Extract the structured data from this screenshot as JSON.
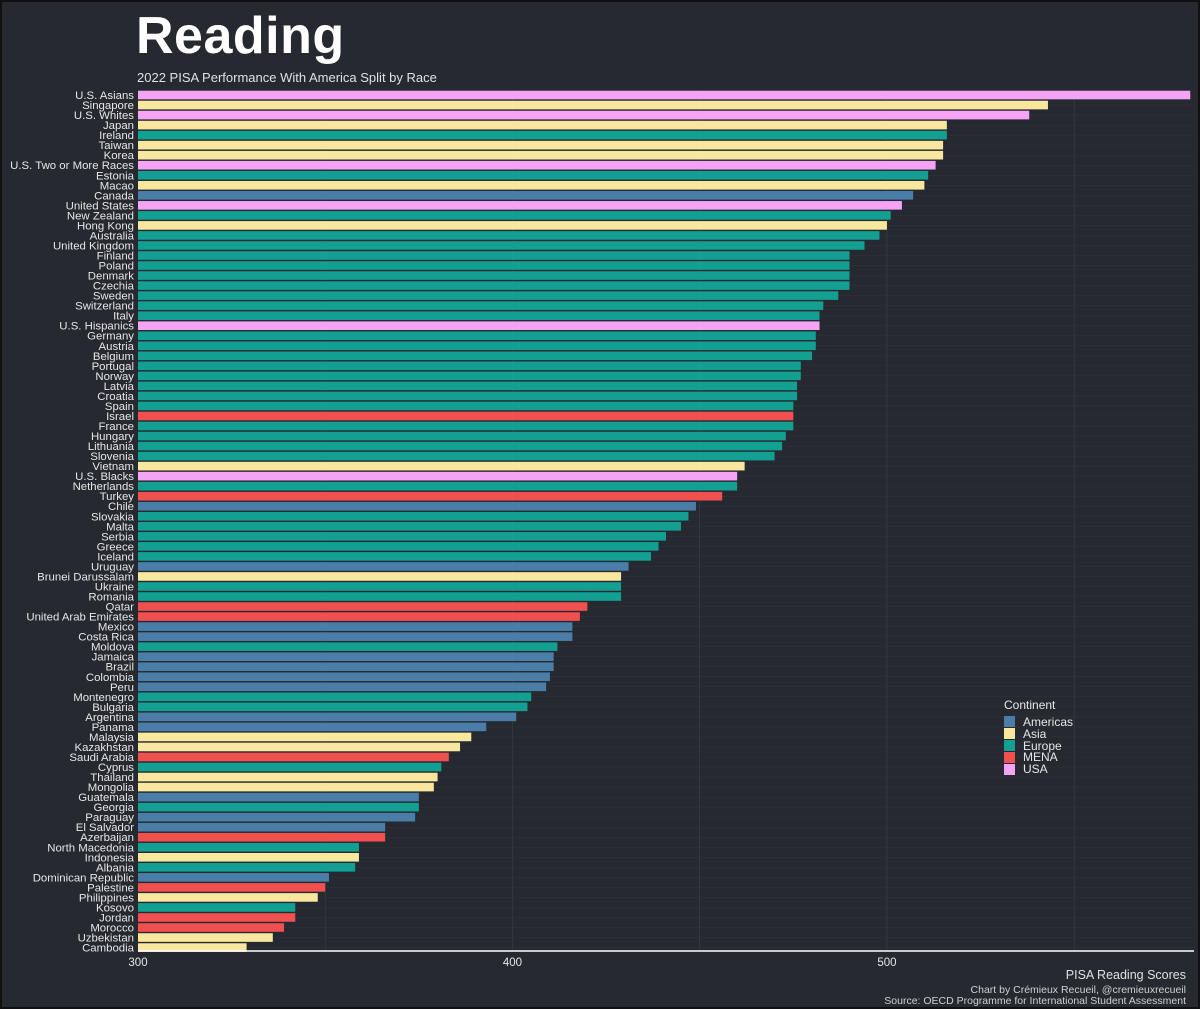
{
  "title": "Reading",
  "subtitle": "2022 PISA Performance With America Split by Race",
  "legend_title": "Continent",
  "footer": {
    "caption": "PISA Reading Scores",
    "credit": "Chart by Crémieux Recueil, @cremieuxrecueil",
    "source": "Source: OECD Programme for International Student Assessment"
  },
  "colors": {
    "Americas": "#4a7ea8",
    "Asia": "#f9e79f",
    "Europe": "#13a092",
    "MENA": "#f05050",
    "USA": "#f4a3f5"
  },
  "chart_data": {
    "type": "bar",
    "orientation": "horizontal",
    "title": "Reading",
    "subtitle": "2022 PISA Performance With America Split by Race",
    "xlabel": "PISA Reading Scores",
    "ylabel": "",
    "xlim": [
      300,
      582
    ],
    "xticks": [
      300,
      400,
      500
    ],
    "legend": [
      "Americas",
      "Asia",
      "Europe",
      "MENA",
      "USA"
    ],
    "legend_position": "right",
    "categories": [
      "U.S. Asians",
      "Singapore",
      "U.S. Whites",
      "Japan",
      "Ireland",
      "Taiwan",
      "Korea",
      "U.S. Two or More Races",
      "Estonia",
      "Macao",
      "Canada",
      "United States",
      "New Zealand",
      "Hong Kong",
      "Australia",
      "United Kingdom",
      "Finland",
      "Poland",
      "Denmark",
      "Czechia",
      "Sweden",
      "Switzerland",
      "Italy",
      "U.S. Hispanics",
      "Germany",
      "Austria",
      "Belgium",
      "Portugal",
      "Norway",
      "Latvia",
      "Croatia",
      "Spain",
      "Israel",
      "France",
      "Hungary",
      "Lithuania",
      "Slovenia",
      "Vietnam",
      "U.S. Blacks",
      "Netherlands",
      "Turkey",
      "Chile",
      "Slovakia",
      "Malta",
      "Serbia",
      "Greece",
      "Iceland",
      "Uruguay",
      "Brunei Darussalam",
      "Ukraine",
      "Romania",
      "Qatar",
      "United Arab Emirates",
      "Mexico",
      "Costa Rica",
      "Moldova",
      "Jamaica",
      "Brazil",
      "Colombia",
      "Peru",
      "Montenegro",
      "Bulgaria",
      "Argentina",
      "Panama",
      "Malaysia",
      "Kazakhstan",
      "Saudi Arabia",
      "Cyprus",
      "Thailand",
      "Mongolia",
      "Guatemala",
      "Georgia",
      "Paraguay",
      "El Salvador",
      "Azerbaijan",
      "North Macedonia",
      "Indonesia",
      "Albania",
      "Dominican Republic",
      "Palestine",
      "Philippines",
      "Kosovo",
      "Jordan",
      "Morocco",
      "Uzbekistan",
      "Cambodia"
    ],
    "values": [
      581,
      543,
      538,
      516,
      516,
      515,
      515,
      513,
      511,
      510,
      507,
      504,
      501,
      500,
      498,
      494,
      490,
      490,
      490,
      490,
      487,
      483,
      482,
      482,
      481,
      481,
      480,
      477,
      477,
      476,
      476,
      475,
      475,
      475,
      473,
      472,
      470,
      462,
      460,
      460,
      456,
      449,
      447,
      445,
      441,
      439,
      437,
      431,
      429,
      429,
      429,
      420,
      418,
      416,
      416,
      412,
      411,
      411,
      410,
      409,
      405,
      404,
      401,
      393,
      389,
      386,
      383,
      381,
      380,
      379,
      375,
      375,
      374,
      366,
      366,
      359,
      359,
      358,
      351,
      350,
      348,
      342,
      342,
      339,
      336,
      329
    ],
    "groups": [
      "USA",
      "Asia",
      "USA",
      "Asia",
      "Europe",
      "Asia",
      "Asia",
      "USA",
      "Europe",
      "Asia",
      "Americas",
      "USA",
      "Europe",
      "Asia",
      "Europe",
      "Europe",
      "Europe",
      "Europe",
      "Europe",
      "Europe",
      "Europe",
      "Europe",
      "Europe",
      "USA",
      "Europe",
      "Europe",
      "Europe",
      "Europe",
      "Europe",
      "Europe",
      "Europe",
      "Europe",
      "MENA",
      "Europe",
      "Europe",
      "Europe",
      "Europe",
      "Asia",
      "USA",
      "Europe",
      "MENA",
      "Americas",
      "Europe",
      "Europe",
      "Europe",
      "Europe",
      "Europe",
      "Americas",
      "Asia",
      "Europe",
      "Europe",
      "MENA",
      "MENA",
      "Americas",
      "Americas",
      "Europe",
      "Americas",
      "Americas",
      "Americas",
      "Americas",
      "Europe",
      "Europe",
      "Americas",
      "Americas",
      "Asia",
      "Asia",
      "MENA",
      "Europe",
      "Asia",
      "Asia",
      "Americas",
      "Europe",
      "Americas",
      "Americas",
      "MENA",
      "Europe",
      "Asia",
      "Europe",
      "Americas",
      "MENA",
      "Asia",
      "Europe",
      "MENA",
      "MENA",
      "Asia",
      "Asia"
    ]
  }
}
